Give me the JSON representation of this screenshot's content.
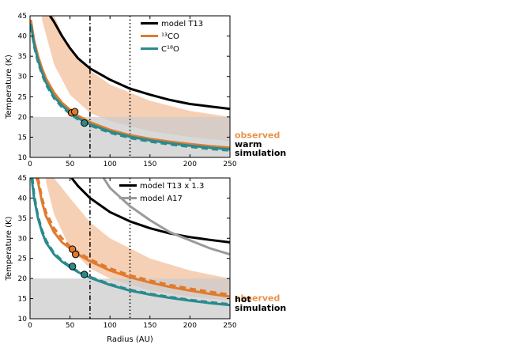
{
  "chart_data": [
    {
      "type": "line",
      "title": "",
      "xlabel": "",
      "ylabel": "Temperature (K)",
      "xlim": [
        0,
        250
      ],
      "ylim": [
        10,
        45
      ],
      "xticks": [
        "0",
        "50",
        "100",
        "150",
        "200",
        "250"
      ],
      "yticks": [
        "10",
        "15",
        "20",
        "25",
        "30",
        "35",
        "40",
        "45"
      ],
      "observed_band": [
        10,
        20
      ],
      "observed_label": "observed",
      "simulation_label": [
        "warm",
        "simulation"
      ],
      "vlines": [
        {
          "x": 75,
          "style": "dashdot"
        },
        {
          "x": 125,
          "style": "dotted"
        }
      ],
      "shaded_band": {
        "x": [
          15,
          30,
          50,
          75,
          100,
          150,
          200,
          250
        ],
        "lower": [
          44,
          33,
          25.5,
          21,
          19,
          16.5,
          15,
          14
        ],
        "upper": [
          45,
          45,
          36.5,
          31.5,
          28,
          24,
          21.5,
          20
        ]
      },
      "series": [
        {
          "name": "model T13",
          "legend": "model T13",
          "color": "#000000",
          "style": "solid",
          "x": [
            25,
            30,
            40,
            50,
            60,
            75,
            100,
            125,
            150,
            175,
            200,
            225,
            250
          ],
          "y": [
            45,
            43.5,
            40,
            37,
            34.5,
            32,
            29.2,
            27,
            25.5,
            24.2,
            23.2,
            22.6,
            22
          ]
        },
        {
          "name": "13CO",
          "legend": "¹³CO",
          "color": "#e07b2e",
          "style": "solid",
          "x": [
            1,
            5,
            10,
            15,
            20,
            30,
            40,
            50,
            60,
            75,
            100,
            125,
            150,
            175,
            200,
            225,
            250
          ],
          "y": [
            44,
            39,
            35,
            32,
            29.5,
            26,
            23.5,
            21.8,
            20.3,
            18.7,
            16.8,
            15.5,
            14.6,
            13.9,
            13.3,
            12.8,
            12.4
          ]
        },
        {
          "name": "13CO dashed",
          "legend": "",
          "color": "#e07b2e",
          "style": "dashed",
          "x": [
            1,
            5,
            10,
            15,
            20,
            30,
            40,
            50,
            60,
            75,
            100,
            125,
            150,
            175,
            200,
            225,
            250
          ],
          "y": [
            43.5,
            38.5,
            34.5,
            31.5,
            29,
            25.6,
            23.2,
            21.5,
            20,
            18.5,
            16.6,
            15.3,
            14.4,
            13.7,
            13.1,
            12.6,
            12.2
          ]
        },
        {
          "name": "C18O",
          "legend": "C¹⁸O",
          "color": "#2a8a8e",
          "style": "solid",
          "x": [
            1,
            5,
            10,
            15,
            20,
            30,
            40,
            50,
            60,
            75,
            100,
            125,
            150,
            175,
            200,
            225,
            250
          ],
          "y": [
            43,
            38,
            34,
            31,
            28.5,
            25,
            22.8,
            21.1,
            19.7,
            18.2,
            16.4,
            15.1,
            14.2,
            13.5,
            12.9,
            12.4,
            12
          ]
        },
        {
          "name": "C18O dashed",
          "legend": "",
          "color": "#2a8a8e",
          "style": "dashed",
          "x": [
            1,
            5,
            10,
            15,
            20,
            30,
            40,
            50,
            60,
            75,
            100,
            125,
            150,
            175,
            200,
            225,
            250
          ],
          "y": [
            42.5,
            37.5,
            33.5,
            30.5,
            28,
            24.6,
            22.4,
            20.8,
            19.4,
            17.9,
            16.1,
            14.8,
            13.9,
            13.2,
            12.6,
            12.1,
            11.7
          ]
        }
      ],
      "markers": [
        {
          "x": 52,
          "y": 21.0,
          "color": "#e07b2e"
        },
        {
          "x": 56,
          "y": 21.3,
          "color": "#e07b2e"
        },
        {
          "x": 68,
          "y": 18.5,
          "color": "#2a8a8e"
        }
      ],
      "legend_position": "top-right"
    },
    {
      "type": "line",
      "title": "",
      "xlabel": "Radius (AU)",
      "ylabel": "Temperature (K)",
      "xlim": [
        0,
        250
      ],
      "ylim": [
        10,
        45
      ],
      "xticks": [
        "0",
        "50",
        "100",
        "150",
        "200",
        "250"
      ],
      "yticks": [
        "10",
        "15",
        "20",
        "25",
        "30",
        "35",
        "40",
        "45"
      ],
      "observed_band": [
        10,
        20
      ],
      "observed_label": "observed",
      "simulation_label": [
        "hot",
        "simulation"
      ],
      "vlines": [
        {
          "x": 75,
          "style": "dashdot"
        },
        {
          "x": 125,
          "style": "dotted"
        }
      ],
      "shaded_band": {
        "x": [
          20,
          30,
          50,
          75,
          100,
          150,
          200,
          250
        ],
        "lower": [
          44,
          36,
          27.5,
          22.5,
          20,
          17,
          15.5,
          14.5
        ],
        "upper": [
          45,
          45,
          40,
          34,
          30,
          25,
          22,
          20
        ]
      },
      "series": [
        {
          "name": "model T13 x 1.3",
          "legend": "model T13 x 1.3",
          "color": "#000000",
          "style": "solid",
          "x": [
            52,
            60,
            75,
            100,
            125,
            150,
            175,
            200,
            225,
            250
          ],
          "y": [
            45,
            43,
            40,
            36.5,
            34.2,
            32.5,
            31.2,
            30.3,
            29.6,
            29
          ]
        },
        {
          "name": "model A17",
          "legend": "model A17",
          "color": "#9a9a9a",
          "style": "solid",
          "x": [
            92,
            100,
            125,
            150,
            175,
            200,
            225,
            250
          ],
          "y": [
            45,
            42.5,
            38,
            34.5,
            31.5,
            29.5,
            27.5,
            26
          ]
        },
        {
          "name": "13CO",
          "legend": "",
          "color": "#e07b2e",
          "style": "solid",
          "x": [
            8,
            10,
            15,
            20,
            30,
            40,
            50,
            60,
            75,
            100,
            125,
            150,
            175,
            200,
            225,
            250
          ],
          "y": [
            45,
            44,
            39,
            35.5,
            31.5,
            29,
            27.5,
            26,
            24.3,
            22,
            20.3,
            19,
            17.9,
            17,
            16.2,
            15.5
          ]
        },
        {
          "name": "13CO dashed",
          "legend": "",
          "color": "#e07b2e",
          "style": "dashed",
          "x": [
            10,
            15,
            20,
            30,
            40,
            50,
            60,
            75,
            100,
            125,
            150,
            175,
            200,
            225,
            250
          ],
          "y": [
            45,
            40,
            36.5,
            32.5,
            30,
            28,
            26.5,
            24.8,
            22.5,
            20.8,
            19.5,
            18.4,
            17.5,
            16.7,
            16
          ]
        },
        {
          "name": "C18O",
          "legend": "",
          "color": "#2a8a8e",
          "style": "solid",
          "x": [
            2,
            5,
            10,
            15,
            20,
            30,
            40,
            50,
            60,
            75,
            100,
            125,
            150,
            175,
            200,
            225,
            250
          ],
          "y": [
            45,
            40,
            35,
            31.5,
            29,
            26,
            24.2,
            22.8,
            21.6,
            20.2,
            18.4,
            17,
            16,
            15.2,
            14.5,
            13.9,
            13.4
          ]
        },
        {
          "name": "C18O dashed",
          "legend": "",
          "color": "#2a8a8e",
          "style": "dashed",
          "x": [
            3,
            5,
            10,
            15,
            20,
            30,
            40,
            50,
            60,
            75,
            100,
            125,
            150,
            175,
            200,
            225,
            250
          ],
          "y": [
            45,
            41,
            35.5,
            32,
            29.5,
            26.3,
            24.5,
            23,
            21.8,
            20.4,
            18.6,
            17.2,
            16.2,
            15.4,
            14.7,
            14.1,
            13.6
          ]
        }
      ],
      "markers": [
        {
          "x": 53,
          "y": 27.3,
          "color": "#e07b2e"
        },
        {
          "x": 57,
          "y": 26.0,
          "color": "#e07b2e"
        },
        {
          "x": 53,
          "y": 23.0,
          "color": "#2a8a8e"
        },
        {
          "x": 68,
          "y": 21.0,
          "color": "#2a8a8e"
        }
      ],
      "legend_position": "top-right"
    }
  ]
}
